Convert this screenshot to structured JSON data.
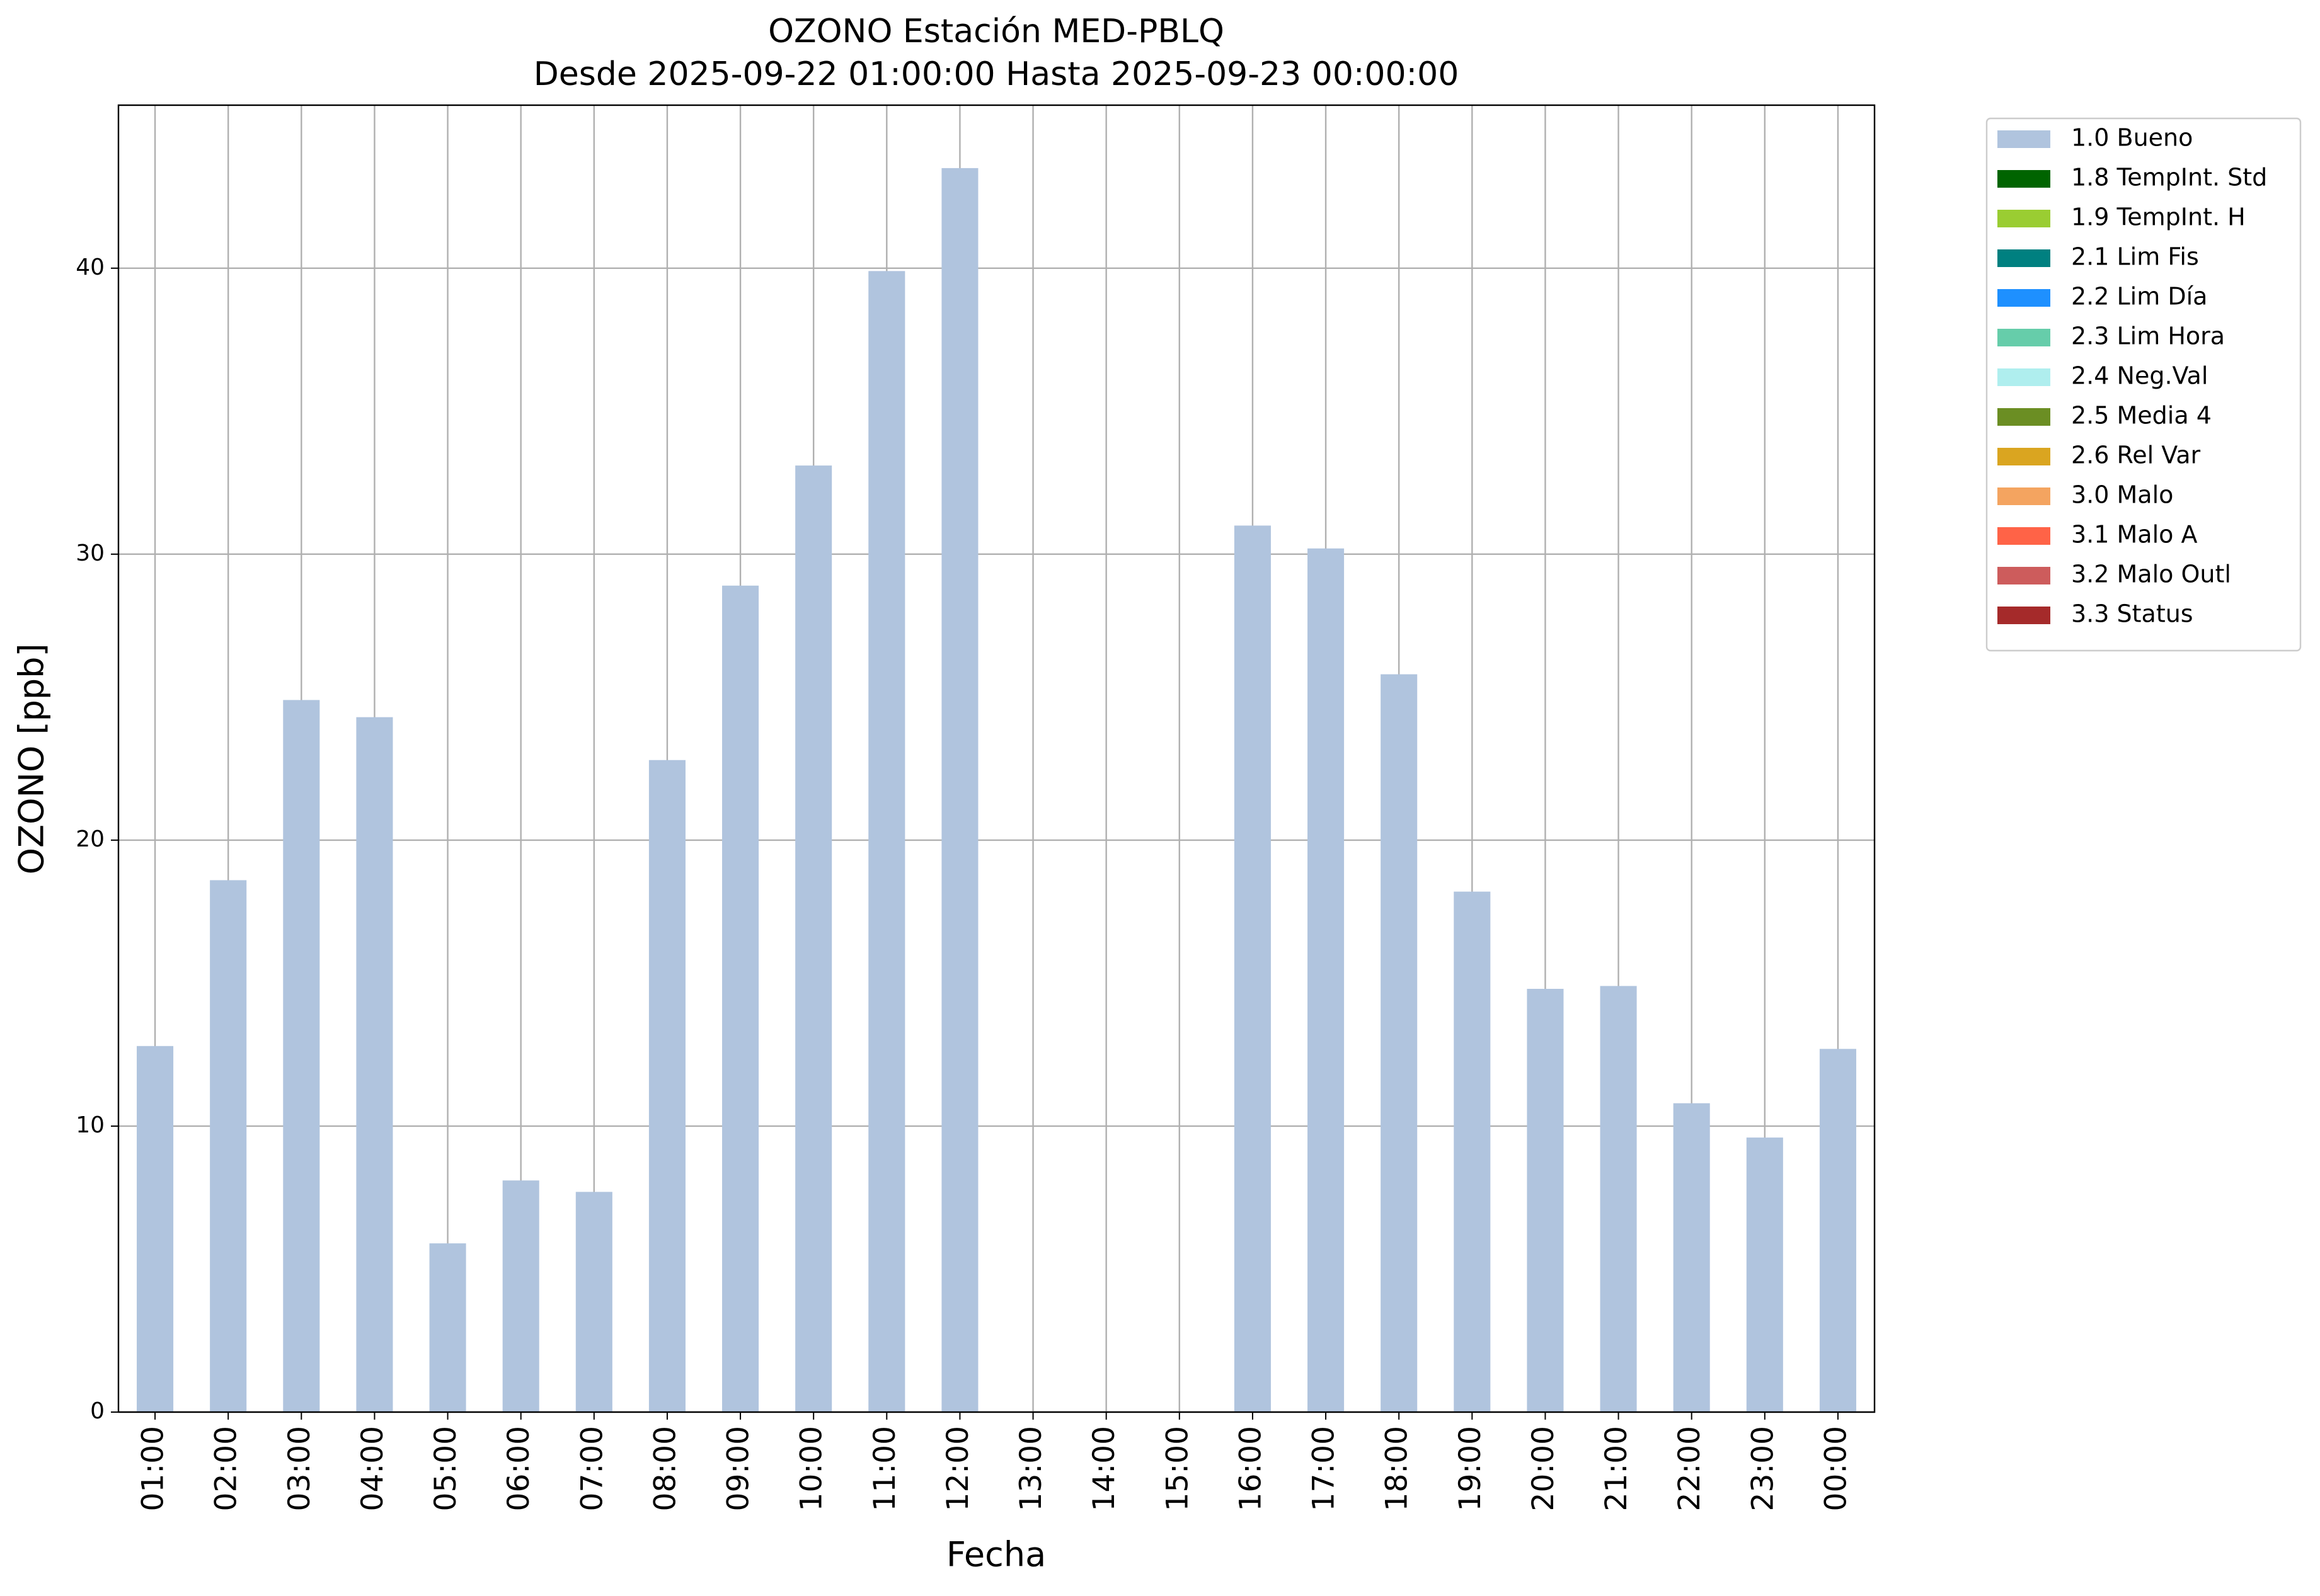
{
  "chart_data": {
    "type": "bar",
    "title": "OZONO Estación MED-PBLQ",
    "subtitle": "Desde 2025-09-22 01:00:00 Hasta 2025-09-23 00:00:00",
    "x_label": "Fecha",
    "y_label": "OZONO [ppb]",
    "categories": [
      "01:00",
      "02:00",
      "03:00",
      "04:00",
      "05:00",
      "06:00",
      "07:00",
      "08:00",
      "09:00",
      "10:00",
      "11:00",
      "12:00",
      "13:00",
      "14:00",
      "15:00",
      "16:00",
      "17:00",
      "18:00",
      "19:00",
      "20:00",
      "21:00",
      "22:00",
      "23:00",
      "00:00"
    ],
    "series": [
      {
        "name": "1.0 Bueno",
        "color": "#b0c4de",
        "values": [
          12.8,
          18.6,
          24.9,
          24.3,
          5.9,
          8.1,
          7.7,
          22.8,
          28.9,
          33.1,
          39.9,
          43.5,
          null,
          null,
          null,
          31.0,
          30.2,
          25.8,
          18.2,
          14.8,
          14.9,
          10.8,
          9.6,
          12.7
        ]
      },
      {
        "name": "1.8 TempInt. Std",
        "color": "#006400",
        "values": [
          null,
          null,
          null,
          null,
          null,
          null,
          null,
          null,
          null,
          null,
          null,
          null,
          null,
          null,
          null,
          null,
          null,
          null,
          null,
          null,
          null,
          null,
          null,
          null
        ]
      },
      {
        "name": "1.9 TempInt. H",
        "color": "#9acd32",
        "values": [
          null,
          null,
          null,
          null,
          null,
          null,
          null,
          null,
          null,
          null,
          null,
          null,
          null,
          null,
          null,
          null,
          null,
          null,
          null,
          null,
          null,
          null,
          null,
          null
        ]
      },
      {
        "name": "2.1 Lim Fis",
        "color": "#008080",
        "values": [
          null,
          null,
          null,
          null,
          null,
          null,
          null,
          null,
          null,
          null,
          null,
          null,
          null,
          null,
          null,
          null,
          null,
          null,
          null,
          null,
          null,
          null,
          null,
          null
        ]
      },
      {
        "name": "2.2 Lim Día",
        "color": "#1e90ff",
        "values": [
          null,
          null,
          null,
          null,
          null,
          null,
          null,
          null,
          null,
          null,
          null,
          null,
          null,
          null,
          null,
          null,
          null,
          null,
          null,
          null,
          null,
          null,
          null,
          null
        ]
      },
      {
        "name": "2.3 Lim Hora",
        "color": "#66cdaa",
        "values": [
          null,
          null,
          null,
          null,
          null,
          null,
          null,
          null,
          null,
          null,
          null,
          null,
          null,
          null,
          null,
          null,
          null,
          null,
          null,
          null,
          null,
          null,
          null,
          null
        ]
      },
      {
        "name": "2.4 Neg.Val",
        "color": "#afeeee",
        "values": [
          null,
          null,
          null,
          null,
          null,
          null,
          null,
          null,
          null,
          null,
          null,
          null,
          null,
          null,
          null,
          null,
          null,
          null,
          null,
          null,
          null,
          null,
          null,
          null
        ]
      },
      {
        "name": "2.5 Media 4",
        "color": "#6b8e23",
        "values": [
          null,
          null,
          null,
          null,
          null,
          null,
          null,
          null,
          null,
          null,
          null,
          null,
          null,
          null,
          null,
          null,
          null,
          null,
          null,
          null,
          null,
          null,
          null,
          null
        ]
      },
      {
        "name": "2.6 Rel Var",
        "color": "#daa520",
        "values": [
          null,
          null,
          null,
          null,
          null,
          null,
          null,
          null,
          null,
          null,
          null,
          null,
          null,
          null,
          null,
          null,
          null,
          null,
          null,
          null,
          null,
          null,
          null,
          null
        ]
      },
      {
        "name": "3.0 Malo",
        "color": "#f4a460",
        "values": [
          null,
          null,
          null,
          null,
          null,
          null,
          null,
          null,
          null,
          null,
          null,
          null,
          null,
          null,
          null,
          null,
          null,
          null,
          null,
          null,
          null,
          null,
          null,
          null
        ]
      },
      {
        "name": "3.1 Malo A",
        "color": "#ff6347",
        "values": [
          null,
          null,
          null,
          null,
          null,
          null,
          null,
          null,
          null,
          null,
          null,
          null,
          null,
          null,
          null,
          null,
          null,
          null,
          null,
          null,
          null,
          null,
          null,
          null
        ]
      },
      {
        "name": "3.2 Malo Outl",
        "color": "#cd5c5c",
        "values": [
          null,
          null,
          null,
          null,
          null,
          null,
          null,
          null,
          null,
          null,
          null,
          null,
          null,
          null,
          null,
          null,
          null,
          null,
          null,
          null,
          null,
          null,
          null,
          null
        ]
      },
      {
        "name": "3.3 Status",
        "color": "#a52a2a",
        "values": [
          null,
          null,
          null,
          null,
          null,
          null,
          null,
          null,
          null,
          null,
          null,
          null,
          null,
          null,
          null,
          null,
          null,
          null,
          null,
          null,
          null,
          null,
          null,
          null
        ]
      }
    ],
    "ylim": [
      0,
      45.7
    ],
    "yticks": [
      0,
      10,
      20,
      30,
      40
    ],
    "grid": true,
    "legend": "outside-upper-right"
  }
}
